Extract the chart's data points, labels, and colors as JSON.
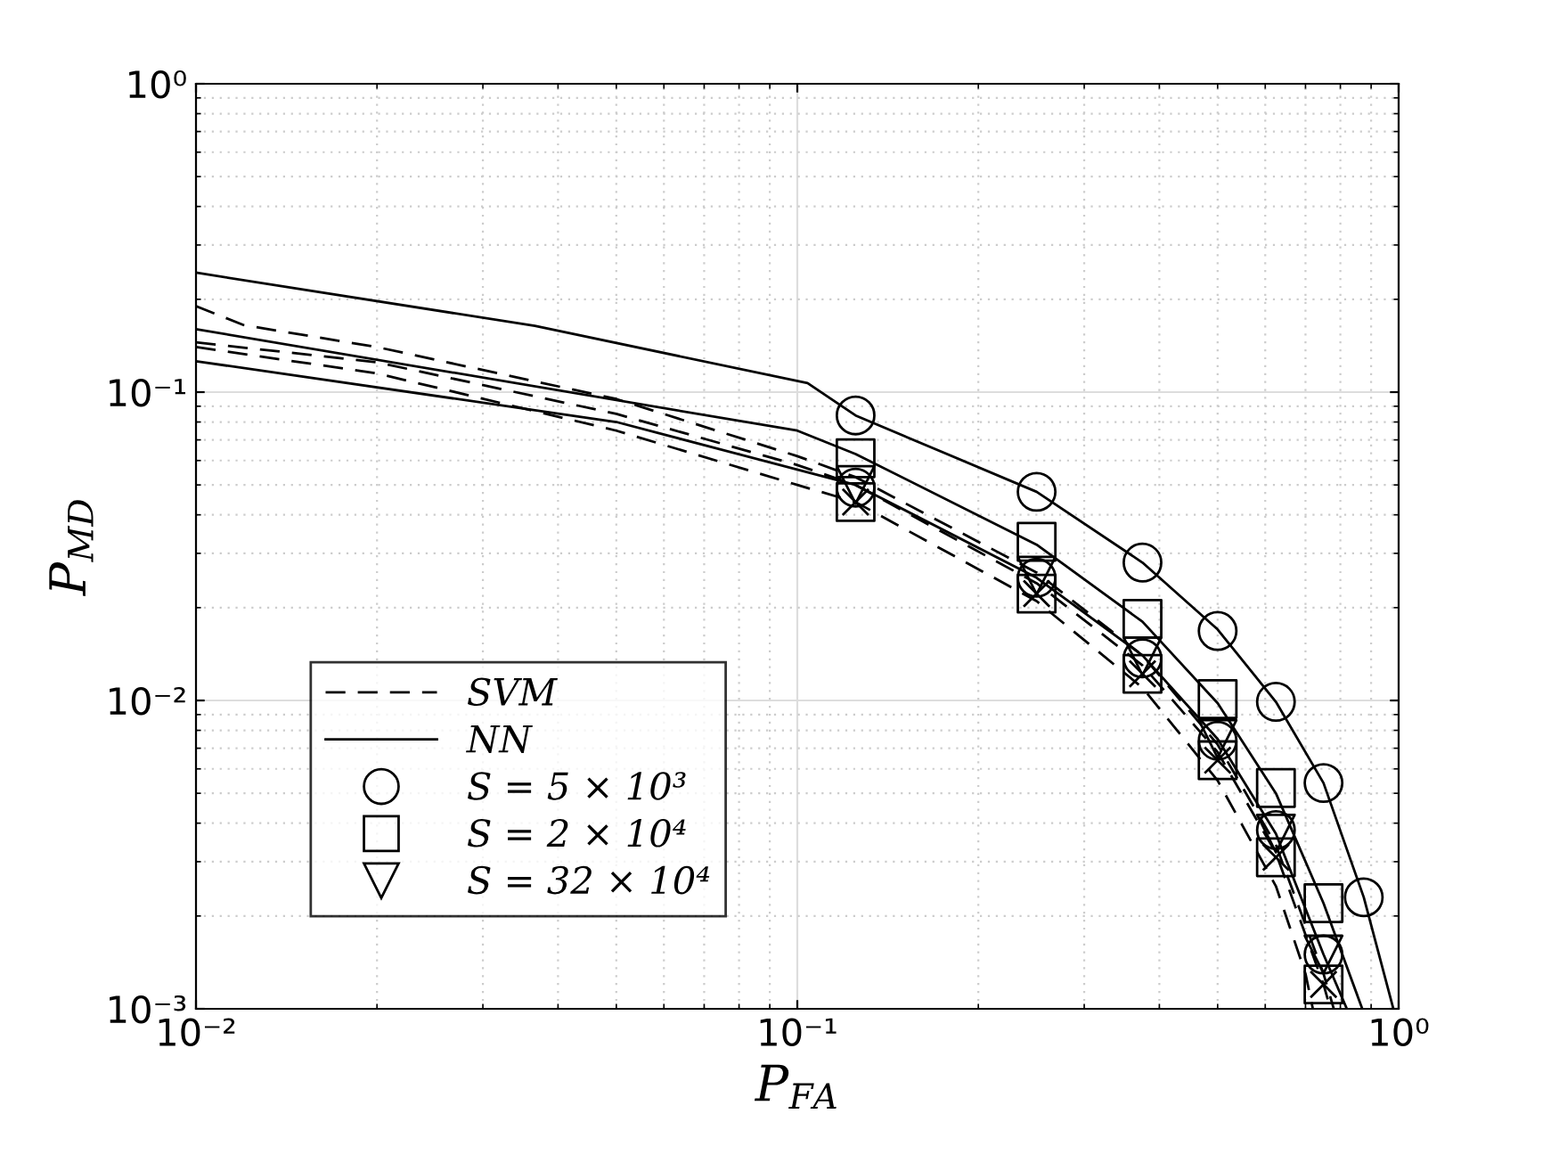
{
  "chart_data": {
    "type": "line",
    "xlabel": "P$_{FA}$",
    "ylabel": "P$_{MD}$",
    "log": "xy",
    "grid": true,
    "legend": "bottom left",
    "xlim": [
      0.01,
      1
    ],
    "ylim": [
      0.001,
      1
    ],
    "xticks": [
      {
        "value": 0.01,
        "label": "10⁻²"
      },
      {
        "value": 0.1,
        "label": "10⁻¹"
      },
      {
        "value": 1,
        "label": "10⁰"
      }
    ],
    "yticks": [
      {
        "value": 0.001,
        "label": "10⁻³"
      },
      {
        "value": 0.01,
        "label": "10⁻²"
      },
      {
        "value": 0.1,
        "label": "10⁻¹"
      },
      {
        "value": 1,
        "label": "10⁰"
      }
    ],
    "series": [
      {
        "name": "SVM",
        "type": "line",
        "line_style": "dashed",
        "marker": "none",
        "color": "#000000",
        "x": [
          0.01,
          0.012,
          0.02,
          0.05,
          0.1,
          0.125,
          0.25,
          0.375,
          0.5,
          0.625,
          0.75,
          0.78
        ],
        "values": [
          0.19,
          0.165,
          0.14,
          0.095,
          0.062,
          0.053,
          0.026,
          0.014,
          0.0072,
          0.0034,
          0.0013,
          0.001
        ]
      },
      {
        "type": "line",
        "line_style": "dashed",
        "marker": "none",
        "color": "#000000",
        "x": [
          0.01,
          0.02,
          0.05,
          0.1,
          0.125,
          0.25,
          0.375,
          0.5,
          0.625,
          0.75,
          0.77
        ],
        "values": [
          0.145,
          0.125,
          0.085,
          0.058,
          0.05,
          0.024,
          0.013,
          0.0068,
          0.0032,
          0.0012,
          0.001
        ]
      },
      {
        "type": "line",
        "line_style": "dashed",
        "marker": "none",
        "color": "#000000",
        "x": [
          0.01,
          0.02,
          0.05,
          0.1,
          0.125,
          0.25,
          0.375,
          0.5,
          0.625,
          0.7,
          0.72
        ],
        "values": [
          0.14,
          0.115,
          0.075,
          0.05,
          0.044,
          0.021,
          0.011,
          0.0055,
          0.0025,
          0.0013,
          0.001
        ]
      },
      {
        "name": "NN",
        "type": "line",
        "line_style": "solid",
        "marker": "none",
        "color": "#000000",
        "x": [
          0.01,
          0.0366,
          0.104,
          0.125,
          0.25,
          0.375,
          0.5,
          0.625,
          0.75,
          0.875,
          0.98
        ],
        "values": [
          0.244,
          0.164,
          0.107,
          0.084,
          0.0475,
          0.028,
          0.017,
          0.0099,
          0.0054,
          0.0023,
          0.001
        ]
      },
      {
        "type": "line",
        "line_style": "solid",
        "marker": "none",
        "color": "#000000",
        "x": [
          0.01,
          0.1,
          0.125,
          0.25,
          0.375,
          0.5,
          0.625,
          0.75,
          0.87
        ],
        "values": [
          0.16,
          0.075,
          0.063,
          0.032,
          0.018,
          0.0098,
          0.005,
          0.0022,
          0.001
        ]
      },
      {
        "type": "line",
        "line_style": "solid",
        "marker": "none",
        "color": "#000000",
        "x": [
          0.01,
          0.05,
          0.125,
          0.25,
          0.375,
          0.5,
          0.625,
          0.75,
          0.82
        ],
        "values": [
          0.126,
          0.08,
          0.05,
          0.025,
          0.014,
          0.0075,
          0.0037,
          0.0015,
          0.001
        ]
      },
      {
        "name": "S = 5 × 10³",
        "type": "scatter",
        "marker": "circle",
        "color": "#000000",
        "x": [
          0.125,
          0.25,
          0.375,
          0.5,
          0.625,
          0.75,
          0.875
        ],
        "values": [
          0.084,
          0.0475,
          0.028,
          0.0168,
          0.0099,
          0.0054,
          0.0023
        ]
      },
      {
        "name": "S = 2 × 10⁴",
        "type": "scatter",
        "marker": "square",
        "color": "#000000",
        "x": [
          0.125,
          0.25,
          0.375,
          0.5,
          0.625,
          0.75
        ],
        "values": [
          0.061,
          0.0327,
          0.0184,
          0.0101,
          0.0052,
          0.0022
        ]
      },
      {
        "name": "S = 32 × 10⁴",
        "type": "scatter",
        "marker": "triangle",
        "color": "#000000",
        "x": [
          0.125,
          0.25,
          0.375,
          0.5,
          0.625,
          0.75
        ],
        "values": [
          0.05,
          0.0254,
          0.0139,
          0.0075,
          0.0037,
          0.0015
        ]
      },
      {
        "type": "scatter",
        "marker": "circle",
        "color": "#000000",
        "x": [
          0.125,
          0.25,
          0.375,
          0.5,
          0.625,
          0.75
        ],
        "values": [
          0.049,
          0.025,
          0.0137,
          0.0074,
          0.0038,
          0.0015
        ]
      },
      {
        "type": "scatter",
        "marker": "square",
        "color": "#000000",
        "x": [
          0.125,
          0.25,
          0.375,
          0.5,
          0.625,
          0.75
        ],
        "values": [
          0.044,
          0.0222,
          0.0122,
          0.0064,
          0.0031,
          0.0012
        ]
      },
      {
        "type": "scatter",
        "marker": "cross",
        "color": "#000000",
        "x": [
          0.125,
          0.25,
          0.375,
          0.5,
          0.625,
          0.75
        ],
        "values": [
          0.044,
          0.0222,
          0.0122,
          0.0064,
          0.0031,
          0.0012
        ]
      }
    ]
  }
}
